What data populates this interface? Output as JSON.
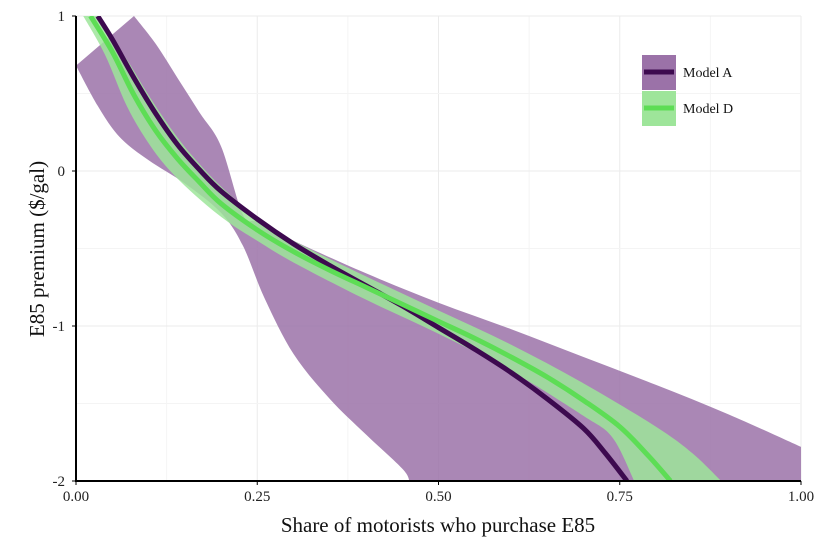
{
  "chart_data": {
    "type": "line",
    "title": "",
    "xlabel": "Share of motorists who purchase E85",
    "ylabel": "E85 premium ($/gal)",
    "xlim": [
      0,
      1
    ],
    "ylim": [
      -2,
      1
    ],
    "x_ticks": [
      "0.00",
      "0.25",
      "0.50",
      "0.75",
      "1.00"
    ],
    "y_ticks": [
      "1",
      "0",
      "-1",
      "-2"
    ],
    "grid": true,
    "legend_position": "top-right",
    "series": [
      {
        "name": "Model A",
        "color": "#3d0a4f",
        "band_color": "#9b72a8",
        "line": [
          {
            "x": 0.03,
            "y": 1.0
          },
          {
            "x": 0.05,
            "y": 0.85
          },
          {
            "x": 0.08,
            "y": 0.6
          },
          {
            "x": 0.11,
            "y": 0.37
          },
          {
            "x": 0.14,
            "y": 0.17
          },
          {
            "x": 0.17,
            "y": 0.01
          },
          {
            "x": 0.2,
            "y": -0.13
          },
          {
            "x": 0.25,
            "y": -0.31
          },
          {
            "x": 0.3,
            "y": -0.47
          },
          {
            "x": 0.35,
            "y": -0.61
          },
          {
            "x": 0.4,
            "y": -0.74
          },
          {
            "x": 0.45,
            "y": -0.87
          },
          {
            "x": 0.5,
            "y": -1.01
          },
          {
            "x": 0.55,
            "y": -1.15
          },
          {
            "x": 0.6,
            "y": -1.3
          },
          {
            "x": 0.65,
            "y": -1.47
          },
          {
            "x": 0.7,
            "y": -1.66
          },
          {
            "x": 0.73,
            "y": -1.82
          },
          {
            "x": 0.76,
            "y": -2.0
          }
        ],
        "upper": [
          {
            "x": 0.08,
            "y": 1.0
          },
          {
            "x": 0.11,
            "y": 0.82
          },
          {
            "x": 0.14,
            "y": 0.6
          },
          {
            "x": 0.17,
            "y": 0.38
          },
          {
            "x": 0.2,
            "y": 0.16
          },
          {
            "x": 0.23,
            "y": -0.28
          },
          {
            "x": 0.25,
            "y": -0.33
          },
          {
            "x": 0.3,
            "y": -0.45
          },
          {
            "x": 0.4,
            "y": -0.66
          },
          {
            "x": 0.5,
            "y": -0.85
          },
          {
            "x": 0.6,
            "y": -1.02
          },
          {
            "x": 0.7,
            "y": -1.2
          },
          {
            "x": 0.8,
            "y": -1.38
          },
          {
            "x": 0.9,
            "y": -1.57
          },
          {
            "x": 1.0,
            "y": -1.78
          }
        ],
        "lower": [
          {
            "x": 0.0,
            "y": 0.68
          },
          {
            "x": 0.03,
            "y": 0.42
          },
          {
            "x": 0.06,
            "y": 0.22
          },
          {
            "x": 0.1,
            "y": 0.07
          },
          {
            "x": 0.15,
            "y": -0.08
          },
          {
            "x": 0.2,
            "y": -0.27
          },
          {
            "x": 0.23,
            "y": -0.48
          },
          {
            "x": 0.26,
            "y": -0.82
          },
          {
            "x": 0.3,
            "y": -1.18
          },
          {
            "x": 0.35,
            "y": -1.47
          },
          {
            "x": 0.4,
            "y": -1.7
          },
          {
            "x": 0.45,
            "y": -1.92
          },
          {
            "x": 0.46,
            "y": -2.0
          }
        ]
      },
      {
        "name": "Model D",
        "color": "#5ddd55",
        "band_color": "#9ee59a",
        "line": [
          {
            "x": 0.02,
            "y": 1.0
          },
          {
            "x": 0.05,
            "y": 0.77
          },
          {
            "x": 0.08,
            "y": 0.49
          },
          {
            "x": 0.11,
            "y": 0.26
          },
          {
            "x": 0.14,
            "y": 0.08
          },
          {
            "x": 0.17,
            "y": -0.07
          },
          {
            "x": 0.2,
            "y": -0.21
          },
          {
            "x": 0.25,
            "y": -0.38
          },
          {
            "x": 0.3,
            "y": -0.52
          },
          {
            "x": 0.35,
            "y": -0.64
          },
          {
            "x": 0.4,
            "y": -0.75
          },
          {
            "x": 0.45,
            "y": -0.86
          },
          {
            "x": 0.5,
            "y": -0.97
          },
          {
            "x": 0.55,
            "y": -1.08
          },
          {
            "x": 0.6,
            "y": -1.2
          },
          {
            "x": 0.65,
            "y": -1.33
          },
          {
            "x": 0.7,
            "y": -1.48
          },
          {
            "x": 0.75,
            "y": -1.65
          },
          {
            "x": 0.79,
            "y": -1.84
          },
          {
            "x": 0.82,
            "y": -2.0
          }
        ],
        "upper": [
          {
            "x": 0.03,
            "y": 1.0
          },
          {
            "x": 0.07,
            "y": 0.72
          },
          {
            "x": 0.1,
            "y": 0.49
          },
          {
            "x": 0.13,
            "y": 0.28
          },
          {
            "x": 0.16,
            "y": 0.1
          },
          {
            "x": 0.2,
            "y": -0.1
          },
          {
            "x": 0.25,
            "y": -0.3
          },
          {
            "x": 0.3,
            "y": -0.45
          },
          {
            "x": 0.4,
            "y": -0.68
          },
          {
            "x": 0.5,
            "y": -0.9
          },
          {
            "x": 0.6,
            "y": -1.12
          },
          {
            "x": 0.7,
            "y": -1.37
          },
          {
            "x": 0.8,
            "y": -1.65
          },
          {
            "x": 0.85,
            "y": -1.82
          },
          {
            "x": 0.89,
            "y": -2.0
          }
        ],
        "lower": [
          {
            "x": 0.01,
            "y": 1.0
          },
          {
            "x": 0.04,
            "y": 0.75
          },
          {
            "x": 0.07,
            "y": 0.42
          },
          {
            "x": 0.1,
            "y": 0.18
          },
          {
            "x": 0.13,
            "y": 0.0
          },
          {
            "x": 0.17,
            "y": -0.18
          },
          {
            "x": 0.21,
            "y": -0.33
          },
          {
            "x": 0.25,
            "y": -0.45
          },
          {
            "x": 0.3,
            "y": -0.59
          },
          {
            "x": 0.4,
            "y": -0.83
          },
          {
            "x": 0.5,
            "y": -1.05
          },
          {
            "x": 0.6,
            "y": -1.29
          },
          {
            "x": 0.7,
            "y": -1.58
          },
          {
            "x": 0.74,
            "y": -1.72
          },
          {
            "x": 0.77,
            "y": -2.0
          }
        ]
      }
    ]
  }
}
